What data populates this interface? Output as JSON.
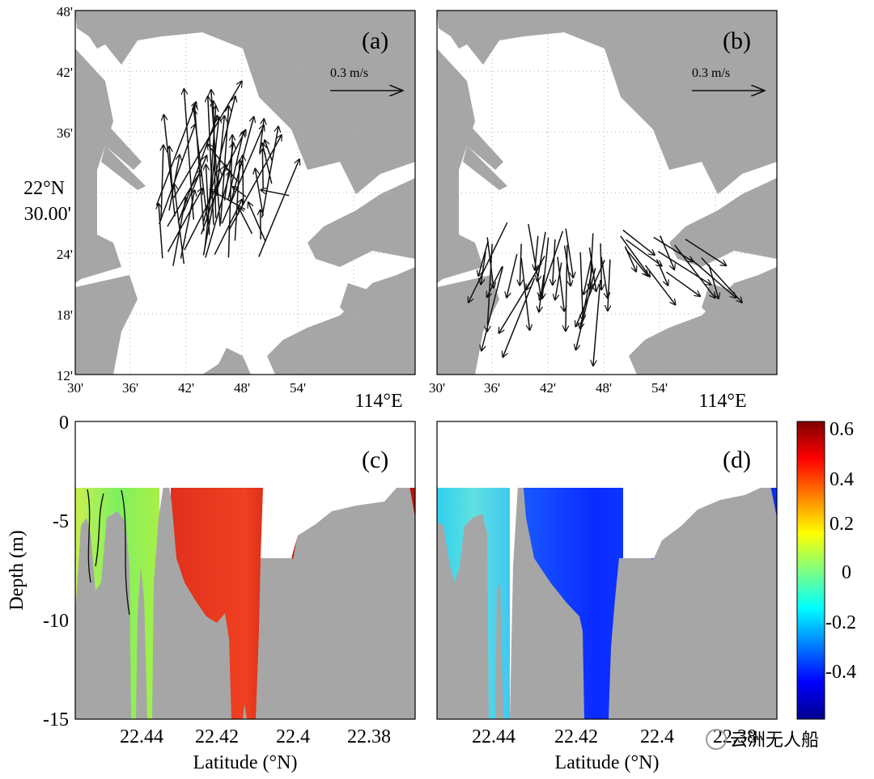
{
  "colors": {
    "land": "#a6a6a6",
    "water": "#ffffff",
    "arrow": "#111111",
    "frame": "#000000"
  },
  "top_panels": {
    "y_ticks": [
      "48'",
      "42'",
      "36'",
      "24'",
      "18'",
      "12'"
    ],
    "y_center_label_line1": "22°N",
    "y_center_label_line2": "30.00'",
    "x_ticks_a": [
      "30'",
      "36'",
      "42'",
      "48'",
      "54'"
    ],
    "x_ticks_b": [
      "30'",
      "36'",
      "42'",
      "48'",
      "54'"
    ],
    "x_lon_label": "114°E",
    "scale_label": "0.3 m/s",
    "label_a": "(a)",
    "label_b": "(b)"
  },
  "bottom_panels": {
    "y_axis_title": "Depth (m)",
    "x_axis_title": "Latitude (°N)",
    "y_ticks": [
      "0",
      "-5",
      "-10",
      "-15"
    ],
    "x_ticks": [
      "22.44",
      "22.42",
      "22.4",
      "22.38"
    ],
    "label_c": "(c)",
    "label_d": "(d)"
  },
  "colorbar": {
    "ticks": [
      "0.6",
      "0.4",
      "0.2",
      "0",
      "-0.2",
      "-0.4"
    ],
    "min": -0.6,
    "max": 0.6,
    "colormap": "jet"
  },
  "watermark": "云洲无人船",
  "chart_data": [
    {
      "type": "quiver",
      "panel": "(a)",
      "xlim_minutes_lon": [
        30,
        66
      ],
      "ylim_minutes_lat": [
        12,
        48
      ],
      "y_ticks": [
        "48'",
        "42'",
        "36'",
        "30.00'",
        "24'",
        "18'",
        "12'"
      ],
      "x_ticks": [
        "30'",
        "36'",
        "42'",
        "48'",
        "54'",
        "114°E"
      ],
      "scale_label": "0.3 m/s",
      "dominant_direction": "north-northeast",
      "region_lon_min": [
        38,
        53
      ],
      "region_lat_min": [
        23,
        41
      ]
    },
    {
      "type": "quiver",
      "panel": "(b)",
      "xlim_minutes_lon": [
        30,
        66
      ],
      "ylim_minutes_lat": [
        12,
        48
      ],
      "scale_label": "0.3 m/s",
      "dominant_direction": "south-southwest",
      "region_lon_min": [
        34,
        58
      ],
      "region_lat_min": [
        14,
        27
      ]
    },
    {
      "type": "heatmap",
      "panel": "(c)",
      "xlabel": "Latitude (°N)",
      "ylabel": "Depth (m)",
      "xlim": [
        22.455,
        22.37
      ],
      "ylim": [
        -15,
        0
      ],
      "x_ticks": [
        22.44,
        22.42,
        22.4,
        22.38
      ],
      "y_ticks": [
        0,
        -5,
        -10,
        -15
      ],
      "value_range": [
        -0.6,
        0.6
      ],
      "typical_values": [
        {
          "lat_range": [
            22.455,
            22.437
          ],
          "value": 0.1
        },
        {
          "lat_range": [
            22.433,
            22.425
          ],
          "value": 0.45
        },
        {
          "lat_range": [
            22.425,
            22.412
          ],
          "value": 0.55
        },
        {
          "lat_range": [
            22.412,
            22.37
          ],
          "value": 0.5
        }
      ]
    },
    {
      "type": "heatmap",
      "panel": "(d)",
      "xlabel": "Latitude (°N)",
      "ylabel": "Depth (m)",
      "xlim": [
        22.455,
        22.37
      ],
      "ylim": [
        -15,
        0
      ],
      "x_ticks": [
        22.44,
        22.42,
        22.4,
        22.38
      ],
      "y_ticks": [
        0,
        -5,
        -10,
        -15
      ],
      "value_range": [
        -0.6,
        0.6
      ],
      "typical_values": [
        {
          "lat_range": [
            22.455,
            22.44
          ],
          "value": -0.15
        },
        {
          "lat_range": [
            22.437,
            22.412
          ],
          "value": -0.4
        },
        {
          "lat_range": [
            22.412,
            22.38
          ],
          "value": -0.45
        }
      ]
    }
  ]
}
